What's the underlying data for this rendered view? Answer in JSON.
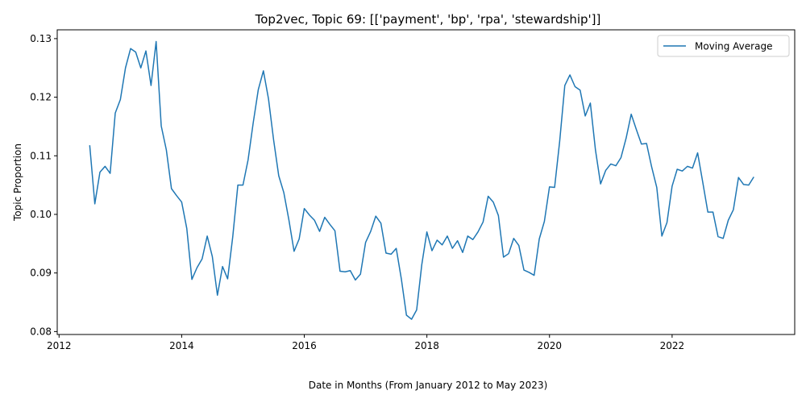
{
  "chart_data": {
    "type": "line",
    "title": "Top2vec, Topic 69: [['payment', 'bp', 'rpa', 'stewardship']]",
    "xlabel": "Date in Months (From January 2012 to May 2023)",
    "ylabel": "Topic Proportion",
    "xlim": [
      2011.97,
      2024.0
    ],
    "ylim": [
      0.0795,
      0.1315
    ],
    "xticks": [
      2012,
      2014,
      2016,
      2018,
      2020,
      2022
    ],
    "xtick_labels": [
      "2012",
      "2014",
      "2016",
      "2018",
      "2020",
      "2022"
    ],
    "yticks": [
      0.08,
      0.09,
      0.1,
      0.11,
      0.12,
      0.13
    ],
    "ytick_labels": [
      "0.08",
      "0.09",
      "0.10",
      "0.11",
      "0.12",
      "0.13"
    ],
    "legend": {
      "position": "top-right",
      "entries": [
        "Moving Average"
      ]
    },
    "grid": false,
    "color": "#1f77b4",
    "series": [
      {
        "name": "Moving Average",
        "x_start": 2012.5,
        "x_step": 0.08333,
        "values": [
          0.1118,
          0.1018,
          0.1072,
          0.1082,
          0.107,
          0.1173,
          0.1196,
          0.125,
          0.1283,
          0.1277,
          0.125,
          0.1279,
          0.122,
          0.1295,
          0.1151,
          0.111,
          0.1044,
          0.1032,
          0.1021,
          0.0976,
          0.0889,
          0.0909,
          0.0924,
          0.0963,
          0.0928,
          0.0862,
          0.0911,
          0.089,
          0.0962,
          0.105,
          0.105,
          0.1093,
          0.1156,
          0.1213,
          0.1245,
          0.1197,
          0.1127,
          0.1066,
          0.1037,
          0.099,
          0.0937,
          0.0958,
          0.101,
          0.0999,
          0.099,
          0.0971,
          0.0995,
          0.0983,
          0.0972,
          0.0903,
          0.0902,
          0.0904,
          0.0888,
          0.0898,
          0.0952,
          0.0971,
          0.0997,
          0.0985,
          0.0934,
          0.0932,
          0.0942,
          0.089,
          0.0828,
          0.0821,
          0.0837,
          0.0914,
          0.097,
          0.0938,
          0.0956,
          0.0948,
          0.0963,
          0.0942,
          0.0955,
          0.0935,
          0.0963,
          0.0957,
          0.097,
          0.0987,
          0.1031,
          0.1021,
          0.0998,
          0.0927,
          0.0933,
          0.0959,
          0.0947,
          0.0905,
          0.0901,
          0.0896,
          0.0958,
          0.0988,
          0.1047,
          0.1046,
          0.1125,
          0.122,
          0.1238,
          0.1218,
          0.1212,
          0.1168,
          0.119,
          0.111,
          0.1052,
          0.1075,
          0.1086,
          0.1083,
          0.1097,
          0.113,
          0.1171,
          0.1145,
          0.112,
          0.1121,
          0.1081,
          0.1046,
          0.0963,
          0.0986,
          0.1048,
          0.1077,
          0.1074,
          0.1082,
          0.1079,
          0.1105,
          0.1055,
          0.1004,
          0.1004,
          0.0962,
          0.0959,
          0.099,
          0.1008,
          0.1063,
          0.1051,
          0.105,
          0.1064
        ]
      }
    ]
  }
}
